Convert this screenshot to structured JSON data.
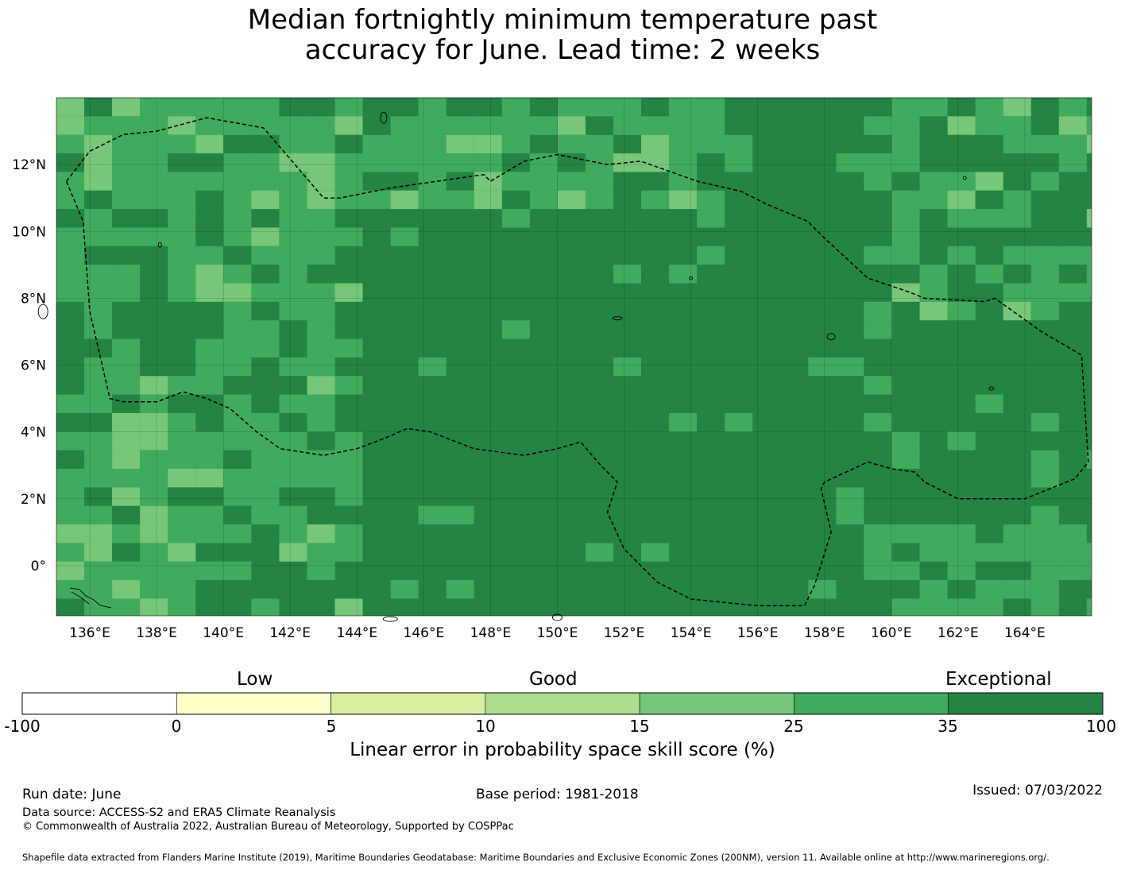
{
  "title": {
    "line1": "Median fortnightly minimum temperature past",
    "line2": "accuracy for June. Lead time: 2 weeks"
  },
  "map": {
    "lon_labels": [
      "136°E",
      "138°E",
      "140°E",
      "142°E",
      "144°E",
      "146°E",
      "148°E",
      "150°E",
      "152°E",
      "154°E",
      "156°E",
      "158°E",
      "160°E",
      "162°E",
      "164°E"
    ],
    "lat_labels": [
      "12°N",
      "10°N",
      "8°N",
      "6°N",
      "4°N",
      "2°N",
      "0°"
    ],
    "extent": {
      "lon_min": 135.0,
      "lon_max": 166.0,
      "lat_min": -1.5,
      "lat_max": 14.0
    },
    "grid_lon_step": 2,
    "grid_lat_step": 2,
    "cell_size_deg": 0.8333,
    "dominant_category": "35 to 100",
    "eez_boundary": "dashed outline (Federated States of Micronesia EEZ)"
  },
  "colorbar": {
    "category_labels": {
      "low": "Low",
      "good": "Good",
      "exceptional": "Exceptional"
    },
    "ticks": [
      "-100",
      "0",
      "5",
      "10",
      "15",
      "25",
      "35",
      "100"
    ],
    "colors": [
      "#ffffff",
      "#ffffcc",
      "#d9f0a3",
      "#addd8e",
      "#78c679",
      "#41ab5d",
      "#238443"
    ],
    "label": "Linear error in probability space skill score (%)"
  },
  "footer": {
    "run_date": "Run date: June",
    "base_period": "Base period: 1981-2018",
    "issued": "Issued: 07/03/2022",
    "data_source": "Data source: ACCESS-S2 and ERA5 Climate Reanalysis",
    "copyright": "© Commonwealth of Australia 2022, Australian Bureau of Meteorology, Supported by COSPPac",
    "shapefile": "Shapefile data extracted from Flanders Marine Institute (2019), Maritime Boundaries Geodatabase: Maritime Boundaries and Exclusive Economic Zones (200NM), version 11. Available online at http://www.marineregions.org/."
  }
}
